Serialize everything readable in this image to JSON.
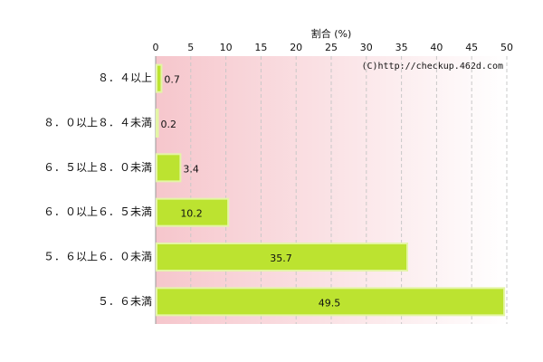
{
  "chart_data": {
    "type": "bar",
    "orientation": "horizontal",
    "x_label": "割合 (%)",
    "annotation": "(C)http://checkup.462d.com",
    "categories": [
      "８．４以上",
      "８．０以上８．４未満",
      "６．５以上８．０未満",
      "６．０以上６．５未満",
      "５．６以上６．０未満",
      "５．６未満"
    ],
    "values": [
      0.7,
      0.2,
      3.4,
      10.2,
      35.7,
      49.5
    ],
    "color": "#bce330",
    "xlim": [
      0,
      50
    ],
    "xticks": [
      0,
      5,
      10,
      15,
      20,
      25,
      30,
      35,
      40,
      45,
      50
    ],
    "grid": true
  }
}
